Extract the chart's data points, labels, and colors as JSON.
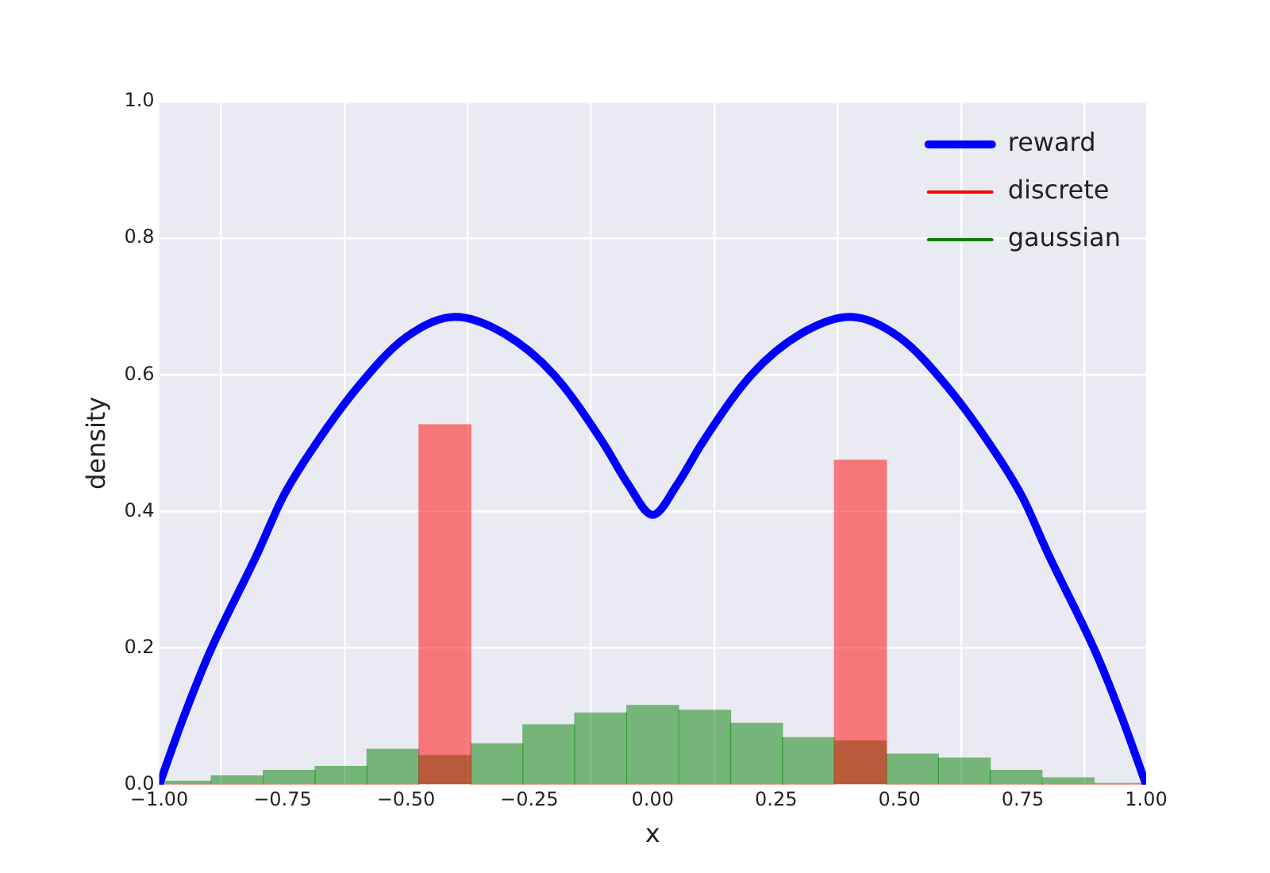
{
  "chart_data": {
    "type": "histogram",
    "xlabel": "x",
    "ylabel": "density",
    "bins": [
      -1,
      -0.895,
      -0.789,
      -0.684,
      -0.579,
      -0.474,
      -0.368,
      -0.263,
      -0.158,
      -0.053,
      0.053,
      0.158,
      0.263,
      0.368,
      0.474,
      0.579,
      0.684,
      0.789,
      0.895,
      1
    ],
    "series": [
      {
        "name": "reward",
        "type": "line",
        "color": "#0000ff",
        "x": [
          -1,
          -0.95,
          -0.9,
          -0.8,
          -0.75,
          -0.7,
          -0.6,
          -0.5,
          -0.4,
          -0.3,
          -0.2,
          -0.1,
          -0.05,
          0,
          0.05,
          0.1,
          0.2,
          0.3,
          0.4,
          0.5,
          0.6,
          0.7,
          0.75,
          0.8,
          0.9,
          0.95,
          1
        ],
        "values": [
          0,
          0.1,
          0.19,
          0.34,
          0.42,
          0.48,
          0.58,
          0.655,
          0.685,
          0.66,
          0.6,
          0.5,
          0.44,
          0.395,
          0.44,
          0.5,
          0.6,
          0.66,
          0.685,
          0.655,
          0.58,
          0.48,
          0.42,
          0.34,
          0.19,
          0.1,
          0
        ]
      },
      {
        "name": "discrete",
        "color": "#ff0000",
        "values": [
          0,
          0,
          0,
          0,
          0,
          0.527,
          0,
          0,
          0,
          0,
          0,
          0,
          0,
          0.475,
          0,
          0,
          0,
          0,
          0
        ]
      },
      {
        "name": "gaussian",
        "color": "#008000",
        "values": [
          0.005,
          0.013,
          0.021,
          0.027,
          0.052,
          0.043,
          0.06,
          0.088,
          0.105,
          0.116,
          0.109,
          0.09,
          0.069,
          0.064,
          0.045,
          0.039,
          0.021,
          0.01,
          0.002
        ]
      }
    ],
    "xlim": [
      -1,
      1
    ],
    "xticks": [
      {
        "value": -1,
        "label": "−1.00"
      },
      {
        "value": -0.75,
        "label": "−0.75"
      },
      {
        "value": -0.5,
        "label": "−0.50"
      },
      {
        "value": -0.25,
        "label": "−0.25"
      },
      {
        "value": 0,
        "label": "0.00"
      },
      {
        "value": 0.25,
        "label": "0.25"
      },
      {
        "value": 0.5,
        "label": "0.50"
      },
      {
        "value": 0.75,
        "label": "0.75"
      },
      {
        "value": 1,
        "label": "1.00"
      }
    ],
    "ylim": [
      0,
      1
    ],
    "yticks": [
      {
        "value": 0,
        "label": "0.0"
      },
      {
        "value": 0.2,
        "label": "0.2"
      },
      {
        "value": 0.4,
        "label": "0.4"
      },
      {
        "value": 0.6,
        "label": "0.6"
      },
      {
        "value": 0.8,
        "label": "0.8"
      },
      {
        "value": 1,
        "label": "1.0"
      }
    ],
    "grid": true,
    "legend": "top right"
  }
}
